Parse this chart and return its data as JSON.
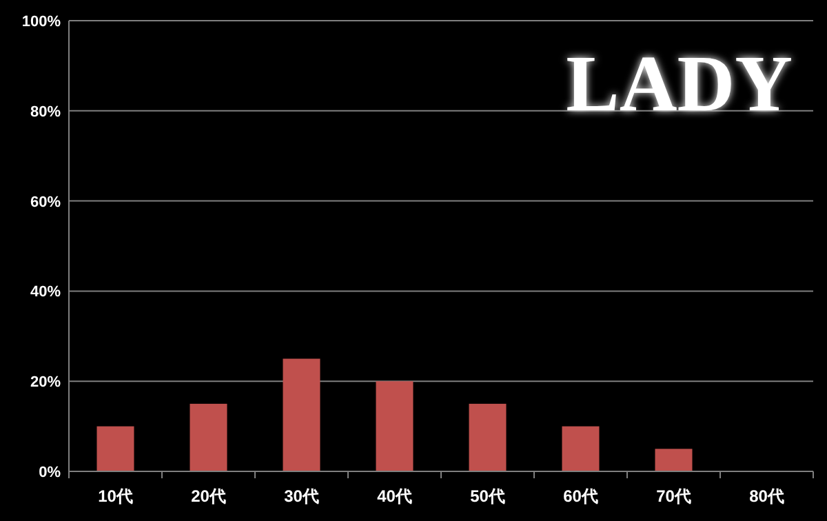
{
  "chart_data": {
    "type": "bar",
    "title": "LADY",
    "categories": [
      "10代",
      "20代",
      "30代",
      "40代",
      "50代",
      "60代",
      "70代",
      "80代"
    ],
    "values": [
      10,
      15,
      25,
      20,
      15,
      10,
      5,
      0
    ],
    "color": "#c0504d",
    "ylim": [
      0,
      100
    ],
    "yticks": [
      {
        "value": 0,
        "label": "0%"
      },
      {
        "value": 20,
        "label": "20%"
      },
      {
        "value": 40,
        "label": "40%"
      },
      {
        "value": 60,
        "label": "60%"
      },
      {
        "value": 80,
        "label": "80%"
      },
      {
        "value": 100,
        "label": "100%"
      }
    ],
    "grid": "y"
  }
}
